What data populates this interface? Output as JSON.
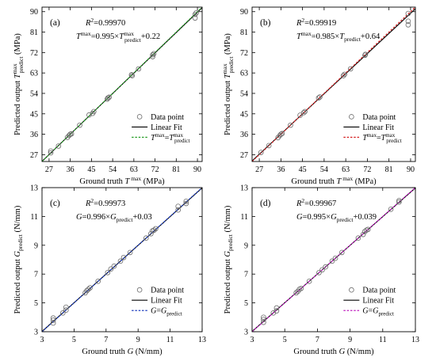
{
  "chart_data": [
    {
      "type": "scatter",
      "panel_label": "(a)",
      "r2_label": "R",
      "r2_sup": "2",
      "r2_value": "=0.99970",
      "fit_y_sym": "T",
      "fit_y_sup": "max",
      "fit_eq_mid": "=0.995×",
      "fit_x_sym": "T",
      "fit_x_sup": "max",
      "fit_x_sub": "predict",
      "fit_eq_tail": "+0.22",
      "xlabel_main": "Ground truth ",
      "xlabel_sym": "T",
      "xlabel_sup": " max",
      "xlabel_unit": " (MPa)",
      "ylabel_main": "Predicted output ",
      "ylabel_sym": "T",
      "ylabel_sup": "max",
      "ylabel_sub": "predict",
      "ylabel_unit": " (MPa)",
      "x_ticks": [
        "27",
        "36",
        "45",
        "54",
        "63",
        "72",
        "81",
        "90"
      ],
      "y_ticks": [
        "27",
        "36",
        "45",
        "54",
        "63",
        "72",
        "81",
        "90"
      ],
      "xlim": [
        24,
        92
      ],
      "ylim": [
        24,
        92
      ],
      "fit": {
        "slope": 0.995,
        "intercept": 0.22
      },
      "ref_color": "#2ca02c",
      "legend": {
        "placement": "bottom-right",
        "data_point": "Data point",
        "linear_fit": "Linear Fit",
        "ref_sym_a": "T",
        "ref_sup_a": "max",
        "ref_eq": "=",
        "ref_sym_b": "T",
        "ref_sup_b": "max",
        "ref_sub_b": "predict"
      },
      "points": [
        [
          27.7,
          27.8
        ],
        [
          27.7,
          28.6
        ],
        [
          31.0,
          30.8
        ],
        [
          34.8,
          34.6
        ],
        [
          35.5,
          35.5
        ],
        [
          36.0,
          36.0
        ],
        [
          36.5,
          36.2
        ],
        [
          40.0,
          40.0
        ],
        [
          44.0,
          44.5
        ],
        [
          45.5,
          45.2
        ],
        [
          46.0,
          46.0
        ],
        [
          51.7,
          51.5
        ],
        [
          52.0,
          52.0
        ],
        [
          52.5,
          52.3
        ],
        [
          62.0,
          62.2
        ],
        [
          62.3,
          61.8
        ],
        [
          65.0,
          64.8
        ],
        [
          71.0,
          71.0
        ],
        [
          71.5,
          71.5
        ],
        [
          71.0,
          70.2
        ],
        [
          89.0,
          88.8
        ],
        [
          89.0,
          87.2
        ],
        [
          89.5,
          89.5
        ]
      ]
    },
    {
      "type": "scatter",
      "panel_label": "(b)",
      "r2_label": "R",
      "r2_sup": "2",
      "r2_value": "=0.99919",
      "fit_y_sym": "T",
      "fit_y_sup": "max",
      "fit_eq_mid": "=0.985×",
      "fit_x_sym": "T",
      "fit_x_sup": "",
      "fit_x_sub": "predict",
      "fit_eq_tail": "+0.64",
      "xlabel_main": "Ground truth ",
      "xlabel_sym": "T",
      "xlabel_sup": " max",
      "xlabel_unit": " (MPa)",
      "ylabel_main": "Predicted output ",
      "ylabel_sym": "T",
      "ylabel_sup": "max",
      "ylabel_sub": "predict",
      "ylabel_unit": " (MPa)",
      "x_ticks": [
        "27",
        "36",
        "45",
        "54",
        "63",
        "72",
        "81",
        "90"
      ],
      "y_ticks": [
        "27",
        "36",
        "45",
        "54",
        "63",
        "72",
        "81",
        "90"
      ],
      "xlim": [
        24,
        92
      ],
      "ylim": [
        24,
        92
      ],
      "fit": {
        "slope": 0.985,
        "intercept": 0.64
      },
      "ref_color": "#d62728",
      "legend": {
        "placement": "bottom-right",
        "data_point": "Data point",
        "linear_fit": "Linear Fit",
        "ref_sym_a": "T",
        "ref_sup_a": "max",
        "ref_eq": "=",
        "ref_sym_b": "T",
        "ref_sup_b": "max",
        "ref_sub_b": "predict"
      },
      "points": [
        [
          27.7,
          28.0
        ],
        [
          31.0,
          31.0
        ],
        [
          34.8,
          34.5
        ],
        [
          35.5,
          35.4
        ],
        [
          36.0,
          36.0
        ],
        [
          36.5,
          36.3
        ],
        [
          40.0,
          40.0
        ],
        [
          44.0,
          44.4
        ],
        [
          45.5,
          45.5
        ],
        [
          46.0,
          46.0
        ],
        [
          51.7,
          52.0
        ],
        [
          52.2,
          52.4
        ],
        [
          62.0,
          61.8
        ],
        [
          62.5,
          62.4
        ],
        [
          65.0,
          64.8
        ],
        [
          71.0,
          70.8
        ],
        [
          71.2,
          71.2
        ],
        [
          89.0,
          89.2
        ],
        [
          89.0,
          85.8
        ],
        [
          89.0,
          84.2
        ]
      ]
    },
    {
      "type": "scatter",
      "panel_label": "(c)",
      "r2_label": "R",
      "r2_sup": "2",
      "r2_value": "=0.99973",
      "fit_y_sym": "G",
      "fit_y_sup": "",
      "fit_eq_mid": "=0.996×",
      "fit_x_sym": "G",
      "fit_x_sup": "",
      "fit_x_sub": "predict",
      "fit_eq_tail": "+0.03",
      "xlabel_main": "Ground truth ",
      "xlabel_sym": "G",
      "xlabel_sup": "",
      "xlabel_unit": " (N/mm)",
      "ylabel_main": "Predicted output ",
      "ylabel_sym": "G",
      "ylabel_sup": "",
      "ylabel_sub": "predict",
      "ylabel_unit": " (N/mm)",
      "x_ticks": [
        "3",
        "5",
        "7",
        "9",
        "11",
        "13"
      ],
      "y_ticks": [
        "3",
        "5",
        "7",
        "9",
        "11",
        "13"
      ],
      "xlim": [
        3,
        13
      ],
      "ylim": [
        3,
        13
      ],
      "fit": {
        "slope": 0.996,
        "intercept": 0.03
      },
      "ref_color": "#1f3fbf",
      "legend": {
        "placement": "bottom-right",
        "data_point": "Data point",
        "linear_fit": "Linear Fit",
        "ref_sym_a": "G",
        "ref_sup_a": "",
        "ref_eq": "=",
        "ref_sym_b": "G",
        "ref_sup_b": "",
        "ref_sub_b": "predict"
      },
      "points": [
        [
          3.7,
          3.6
        ],
        [
          3.7,
          3.8
        ],
        [
          3.7,
          3.95
        ],
        [
          4.3,
          4.3
        ],
        [
          4.5,
          4.5
        ],
        [
          4.5,
          4.7
        ],
        [
          5.7,
          5.7
        ],
        [
          5.8,
          5.85
        ],
        [
          5.9,
          5.95
        ],
        [
          6.0,
          6.05
        ],
        [
          6.5,
          6.5
        ],
        [
          7.1,
          7.1
        ],
        [
          7.3,
          7.35
        ],
        [
          7.5,
          7.55
        ],
        [
          7.9,
          7.9
        ],
        [
          8.1,
          8.15
        ],
        [
          8.5,
          8.5
        ],
        [
          9.5,
          9.5
        ],
        [
          9.8,
          9.8
        ],
        [
          9.9,
          10.0
        ],
        [
          10.0,
          10.05
        ],
        [
          10.1,
          10.15
        ],
        [
          11.5,
          11.45
        ],
        [
          11.5,
          11.7
        ],
        [
          12.0,
          11.9
        ],
        [
          12.0,
          12.05
        ]
      ]
    },
    {
      "type": "scatter",
      "panel_label": "(d)",
      "r2_label": "R",
      "r2_sup": "2",
      "r2_value": "=0.99967",
      "fit_y_sym": "G",
      "fit_y_sup": "",
      "fit_eq_mid": "=0.995×",
      "fit_x_sym": "G",
      "fit_x_sup": "",
      "fit_x_sub": "predict",
      "fit_eq_tail": "+0.039",
      "xlabel_main": "Ground truth ",
      "xlabel_sym": "G",
      "xlabel_sup": "",
      "xlabel_unit": " (N/mm)",
      "ylabel_main": "Predicted output ",
      "ylabel_sym": "G",
      "ylabel_sup": "",
      "ylabel_sub": "predict",
      "ylabel_unit": " (N/mm)",
      "x_ticks": [
        "3",
        "5",
        "7",
        "9",
        "11",
        "13"
      ],
      "y_ticks": [
        "3",
        "5",
        "7",
        "9",
        "11",
        "13"
      ],
      "xlim": [
        3,
        13
      ],
      "ylim": [
        3,
        13
      ],
      "fit": {
        "slope": 0.995,
        "intercept": 0.039
      },
      "ref_color": "#c020c0",
      "legend": {
        "placement": "bottom-right",
        "data_point": "Data point",
        "linear_fit": "Linear Fit",
        "ref_sym_a": "G",
        "ref_sup_a": "",
        "ref_eq": "=",
        "ref_sym_b": "G",
        "ref_sup_b": "",
        "ref_sub_b": "predict"
      },
      "points": [
        [
          3.7,
          3.65
        ],
        [
          3.7,
          3.85
        ],
        [
          3.7,
          4.0
        ],
        [
          4.3,
          4.3
        ],
        [
          4.5,
          4.45
        ],
        [
          4.5,
          4.65
        ],
        [
          5.7,
          5.7
        ],
        [
          5.8,
          5.8
        ],
        [
          5.9,
          5.95
        ],
        [
          6.0,
          6.0
        ],
        [
          6.5,
          6.5
        ],
        [
          7.1,
          7.1
        ],
        [
          7.3,
          7.3
        ],
        [
          7.5,
          7.5
        ],
        [
          7.9,
          7.9
        ],
        [
          8.1,
          8.1
        ],
        [
          8.5,
          8.5
        ],
        [
          9.5,
          9.5
        ],
        [
          9.8,
          9.75
        ],
        [
          9.9,
          9.95
        ],
        [
          10.0,
          10.05
        ],
        [
          10.1,
          10.1
        ],
        [
          11.5,
          11.5
        ],
        [
          12.0,
          12.0
        ],
        [
          12.0,
          12.1
        ]
      ]
    }
  ]
}
